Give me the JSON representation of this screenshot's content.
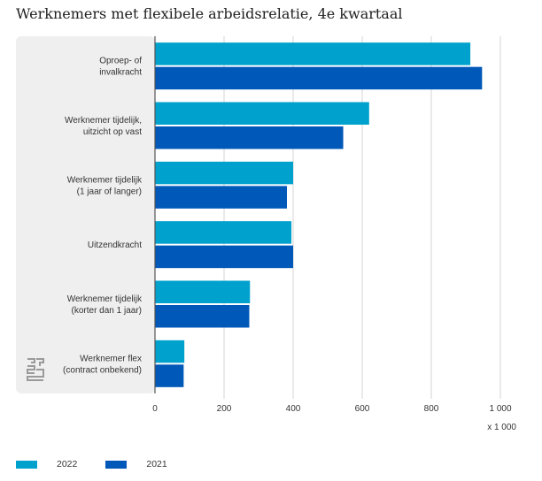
{
  "chart_data": {
    "type": "bar",
    "orientation": "horizontal",
    "title": "Werknemers met flexibele arbeidsrelatie, 4e kwartaal",
    "unit_label": "x 1 000",
    "categories": [
      [
        "Oproep- of",
        "invalkracht"
      ],
      [
        "Werknemer tijdelijk,",
        "uitzicht op vast"
      ],
      [
        "Werknemer tijdelijk",
        "(1 jaar of langer)"
      ],
      [
        "Uitzendkracht"
      ],
      [
        "Werknemer tijdelijk",
        "(korter dan 1 jaar)"
      ],
      [
        "Werknemer flex",
        "(contract onbekend)"
      ]
    ],
    "series": [
      {
        "name": "2022",
        "color": "#00a1cd",
        "values": [
          913,
          620,
          400,
          395,
          275,
          85
        ]
      },
      {
        "name": "2021",
        "color": "#0058b8",
        "values": [
          947,
          545,
          382,
          400,
          273,
          83
        ]
      }
    ],
    "xlim": [
      0,
      1000
    ],
    "xticks": [
      0,
      200,
      400,
      600,
      800,
      1000
    ],
    "xtick_labels": [
      "0",
      "200",
      "400",
      "600",
      "800",
      "1 000"
    ],
    "grid": true,
    "legend_position": "bottom-left"
  },
  "logo": {
    "name": "cbs-logo-icon"
  }
}
